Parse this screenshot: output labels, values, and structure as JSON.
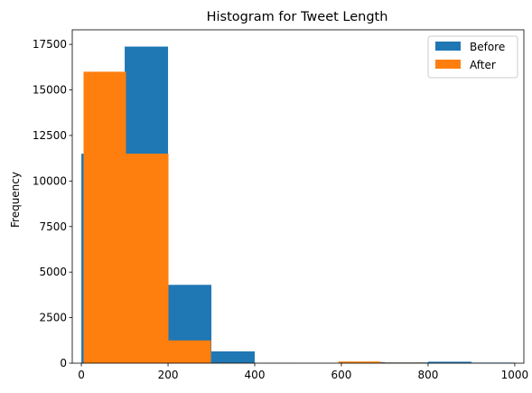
{
  "chart_data": {
    "type": "bar",
    "title": "Histogram for Tweet Length",
    "xlabel": "",
    "ylabel": "Frequency",
    "xlim": [
      -21,
      1021
    ],
    "ylim": [
      0,
      18300
    ],
    "xticks": [
      0,
      200,
      400,
      600,
      800,
      1000
    ],
    "yticks": [
      0,
      2500,
      5000,
      7500,
      10000,
      12500,
      15000,
      17500
    ],
    "legend_position": "top-right",
    "series": [
      {
        "name": "Before",
        "color": "#1f77b4",
        "bins": [
          {
            "x0": 0,
            "x1": 100,
            "value": 11500
          },
          {
            "x0": 100,
            "x1": 200,
            "value": 17380
          },
          {
            "x0": 200,
            "x1": 300,
            "value": 4300
          },
          {
            "x0": 300,
            "x1": 400,
            "value": 650
          },
          {
            "x0": 400,
            "x1": 500,
            "value": 10
          },
          {
            "x0": 500,
            "x1": 600,
            "value": 5
          },
          {
            "x0": 600,
            "x1": 700,
            "value": 60
          },
          {
            "x0": 700,
            "x1": 800,
            "value": 40
          },
          {
            "x0": 800,
            "x1": 900,
            "value": 80
          },
          {
            "x0": 900,
            "x1": 1000,
            "value": 30
          }
        ]
      },
      {
        "name": "After",
        "color": "#ff7f0e",
        "bins": [
          {
            "x0": 5,
            "x1": 103,
            "value": 16000
          },
          {
            "x0": 103,
            "x1": 201,
            "value": 11500
          },
          {
            "x0": 201,
            "x1": 299,
            "value": 1250
          },
          {
            "x0": 299,
            "x1": 397,
            "value": 15
          },
          {
            "x0": 397,
            "x1": 495,
            "value": 5
          },
          {
            "x0": 495,
            "x1": 593,
            "value": 5
          },
          {
            "x0": 593,
            "x1": 691,
            "value": 90
          },
          {
            "x0": 691,
            "x1": 789,
            "value": 30
          }
        ]
      }
    ]
  }
}
